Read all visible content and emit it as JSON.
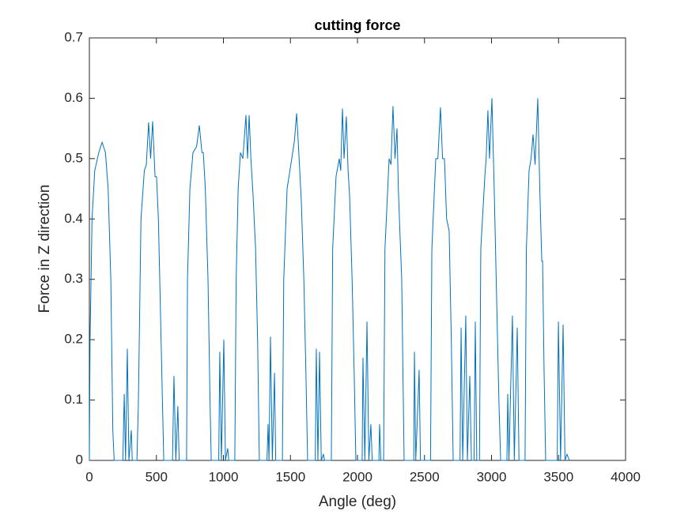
{
  "chart_data": {
    "type": "line",
    "title": "cutting force",
    "xlabel": "Angle (deg)",
    "ylabel": "Force in Z direction",
    "xlim": [
      0,
      4000
    ],
    "xticks": [
      0,
      500,
      1000,
      1500,
      2000,
      2500,
      3000,
      3500,
      4000
    ],
    "ylim": [
      0,
      0.7
    ],
    "yticks": [
      0,
      0.1,
      0.2,
      0.3,
      0.4,
      0.5,
      0.6,
      0.7
    ],
    "x": [
      0,
      5,
      20,
      40,
      70,
      95,
      120,
      140,
      160,
      175,
      185,
      250,
      260,
      270,
      283,
      295,
      313,
      320,
      355,
      366,
      385,
      410,
      425,
      442,
      457,
      472,
      490,
      501,
      515,
      535,
      555,
      620,
      631,
      645,
      660,
      670,
      725,
      732,
      750,
      773,
      800,
      820,
      840,
      850,
      865,
      885,
      900,
      909,
      965,
      973,
      985,
      1003,
      1015,
      1032,
      1040,
      1085,
      1095,
      1110,
      1127,
      1145,
      1168,
      1180,
      1192,
      1205,
      1221,
      1240,
      1255,
      1268,
      1325,
      1333,
      1340,
      1351,
      1365,
      1381,
      1390,
      1440,
      1450,
      1475,
      1510,
      1530,
      1546,
      1560,
      1581,
      1600,
      1615,
      1628,
      1685,
      1693,
      1705,
      1717,
      1730,
      1746,
      1755,
      1805,
      1815,
      1840,
      1864,
      1875,
      1888,
      1900,
      1917,
      1930,
      1941,
      1960,
      1975,
      1988,
      2035,
      2041,
      2055,
      2071,
      2085,
      2100,
      2110,
      2160,
      2165,
      2175,
      2195,
      2205,
      2236,
      2250,
      2265,
      2280,
      2295,
      2305,
      2313,
      2330,
      2348,
      2420,
      2425,
      2435,
      2460,
      2470,
      2545,
      2555,
      2584,
      2600,
      2619,
      2635,
      2649,
      2665,
      2684,
      2700,
      2714,
      2765,
      2773,
      2785,
      2808,
      2820,
      2838,
      2850,
      2870,
      2879,
      2890,
      2910,
      2920,
      2950,
      2960,
      2973,
      2985,
      3003,
      3020,
      3035,
      3044,
      3055,
      3068,
      3115,
      3121,
      3130,
      3156,
      3170,
      3192,
      3205,
      3250,
      3260,
      3280,
      3295,
      3310,
      3325,
      3345,
      3360,
      3375,
      3381,
      3392,
      3404,
      3490,
      3499,
      3515,
      3534,
      3548,
      3563,
      3581
    ],
    "series": [
      {
        "color": "#0072bd",
        "values": [
          0,
          0.2,
          0.4,
          0.48,
          0.51,
          0.527,
          0.51,
          0.45,
          0.3,
          0.05,
          0,
          0,
          0.11,
          0,
          0.185,
          0,
          0.05,
          0,
          0,
          0.1,
          0.4,
          0.48,
          0.49,
          0.56,
          0.5,
          0.562,
          0.47,
          0.47,
          0.4,
          0.2,
          0,
          0,
          0.14,
          0,
          0.09,
          0,
          0,
          0.3,
          0.45,
          0.51,
          0.52,
          0.555,
          0.51,
          0.51,
          0.45,
          0.3,
          0.1,
          0,
          0,
          0.18,
          0,
          0.2,
          0,
          0.02,
          0,
          0,
          0.3,
          0.45,
          0.51,
          0.5,
          0.572,
          0.5,
          0.572,
          0.5,
          0.44,
          0.35,
          0.2,
          0,
          0,
          0.06,
          0,
          0.205,
          0,
          0.145,
          0,
          0,
          0.3,
          0.45,
          0.5,
          0.53,
          0.575,
          0.52,
          0.43,
          0.3,
          0.15,
          0,
          0,
          0.185,
          0,
          0.18,
          0,
          0.01,
          0,
          0,
          0.35,
          0.47,
          0.5,
          0.48,
          0.583,
          0.5,
          0.57,
          0.48,
          0.44,
          0.3,
          0.15,
          0,
          0,
          0.17,
          0,
          0.23,
          0,
          0.06,
          0,
          0,
          0.06,
          0,
          0,
          0.35,
          0.5,
          0.49,
          0.587,
          0.5,
          0.55,
          0.45,
          0.4,
          0.3,
          0,
          0,
          0.18,
          0,
          0.15,
          0,
          0,
          0.35,
          0.5,
          0.5,
          0.585,
          0.5,
          0.5,
          0.4,
          0.38,
          0.2,
          0,
          0,
          0.22,
          0,
          0.24,
          0,
          0.14,
          0,
          0,
          0.23,
          0,
          0,
          0.35,
          0.47,
          0.5,
          0.58,
          0.5,
          0.6,
          0.45,
          0.3,
          0.21,
          0.1,
          0,
          0,
          0.11,
          0,
          0.24,
          0,
          0.22,
          0,
          0,
          0.35,
          0.48,
          0.5,
          0.54,
          0.49,
          0.6,
          0.45,
          0.33,
          0.33,
          0.15,
          0,
          0,
          0.23,
          0,
          0.225,
          0,
          0.01,
          0
        ]
      }
    ]
  }
}
